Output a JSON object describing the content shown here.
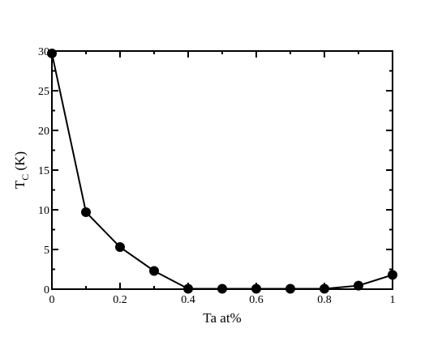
{
  "chart_data": {
    "type": "line",
    "xlabel": "Ta  at%",
    "ylabel": {
      "main": "T",
      "sub": "C",
      "rest": " (K)"
    },
    "xlim": [
      0,
      1
    ],
    "ylim": [
      0,
      30
    ],
    "x_ticks": [
      0,
      0.2,
      0.4,
      0.6,
      0.8,
      1
    ],
    "x_tick_labels": [
      "0",
      "0.2",
      "0.4",
      "0.6",
      "0.8",
      "1"
    ],
    "y_ticks": [
      0,
      5,
      10,
      15,
      20,
      25,
      30
    ],
    "y_tick_labels": [
      "0",
      "5",
      "10",
      "15",
      "20",
      "25",
      "30"
    ],
    "grid": false,
    "legend": "none",
    "series": [
      {
        "x": [
          0,
          0.1,
          0.2,
          0.3,
          0.4,
          0.5,
          0.6,
          0.7,
          0.8,
          0.9,
          1.0
        ],
        "y": [
          29.7,
          9.7,
          5.3,
          2.3,
          0.05,
          0.05,
          0.05,
          0.05,
          0.05,
          0.45,
          1.8
        ],
        "color": "#000000",
        "marker": "circle"
      }
    ]
  }
}
